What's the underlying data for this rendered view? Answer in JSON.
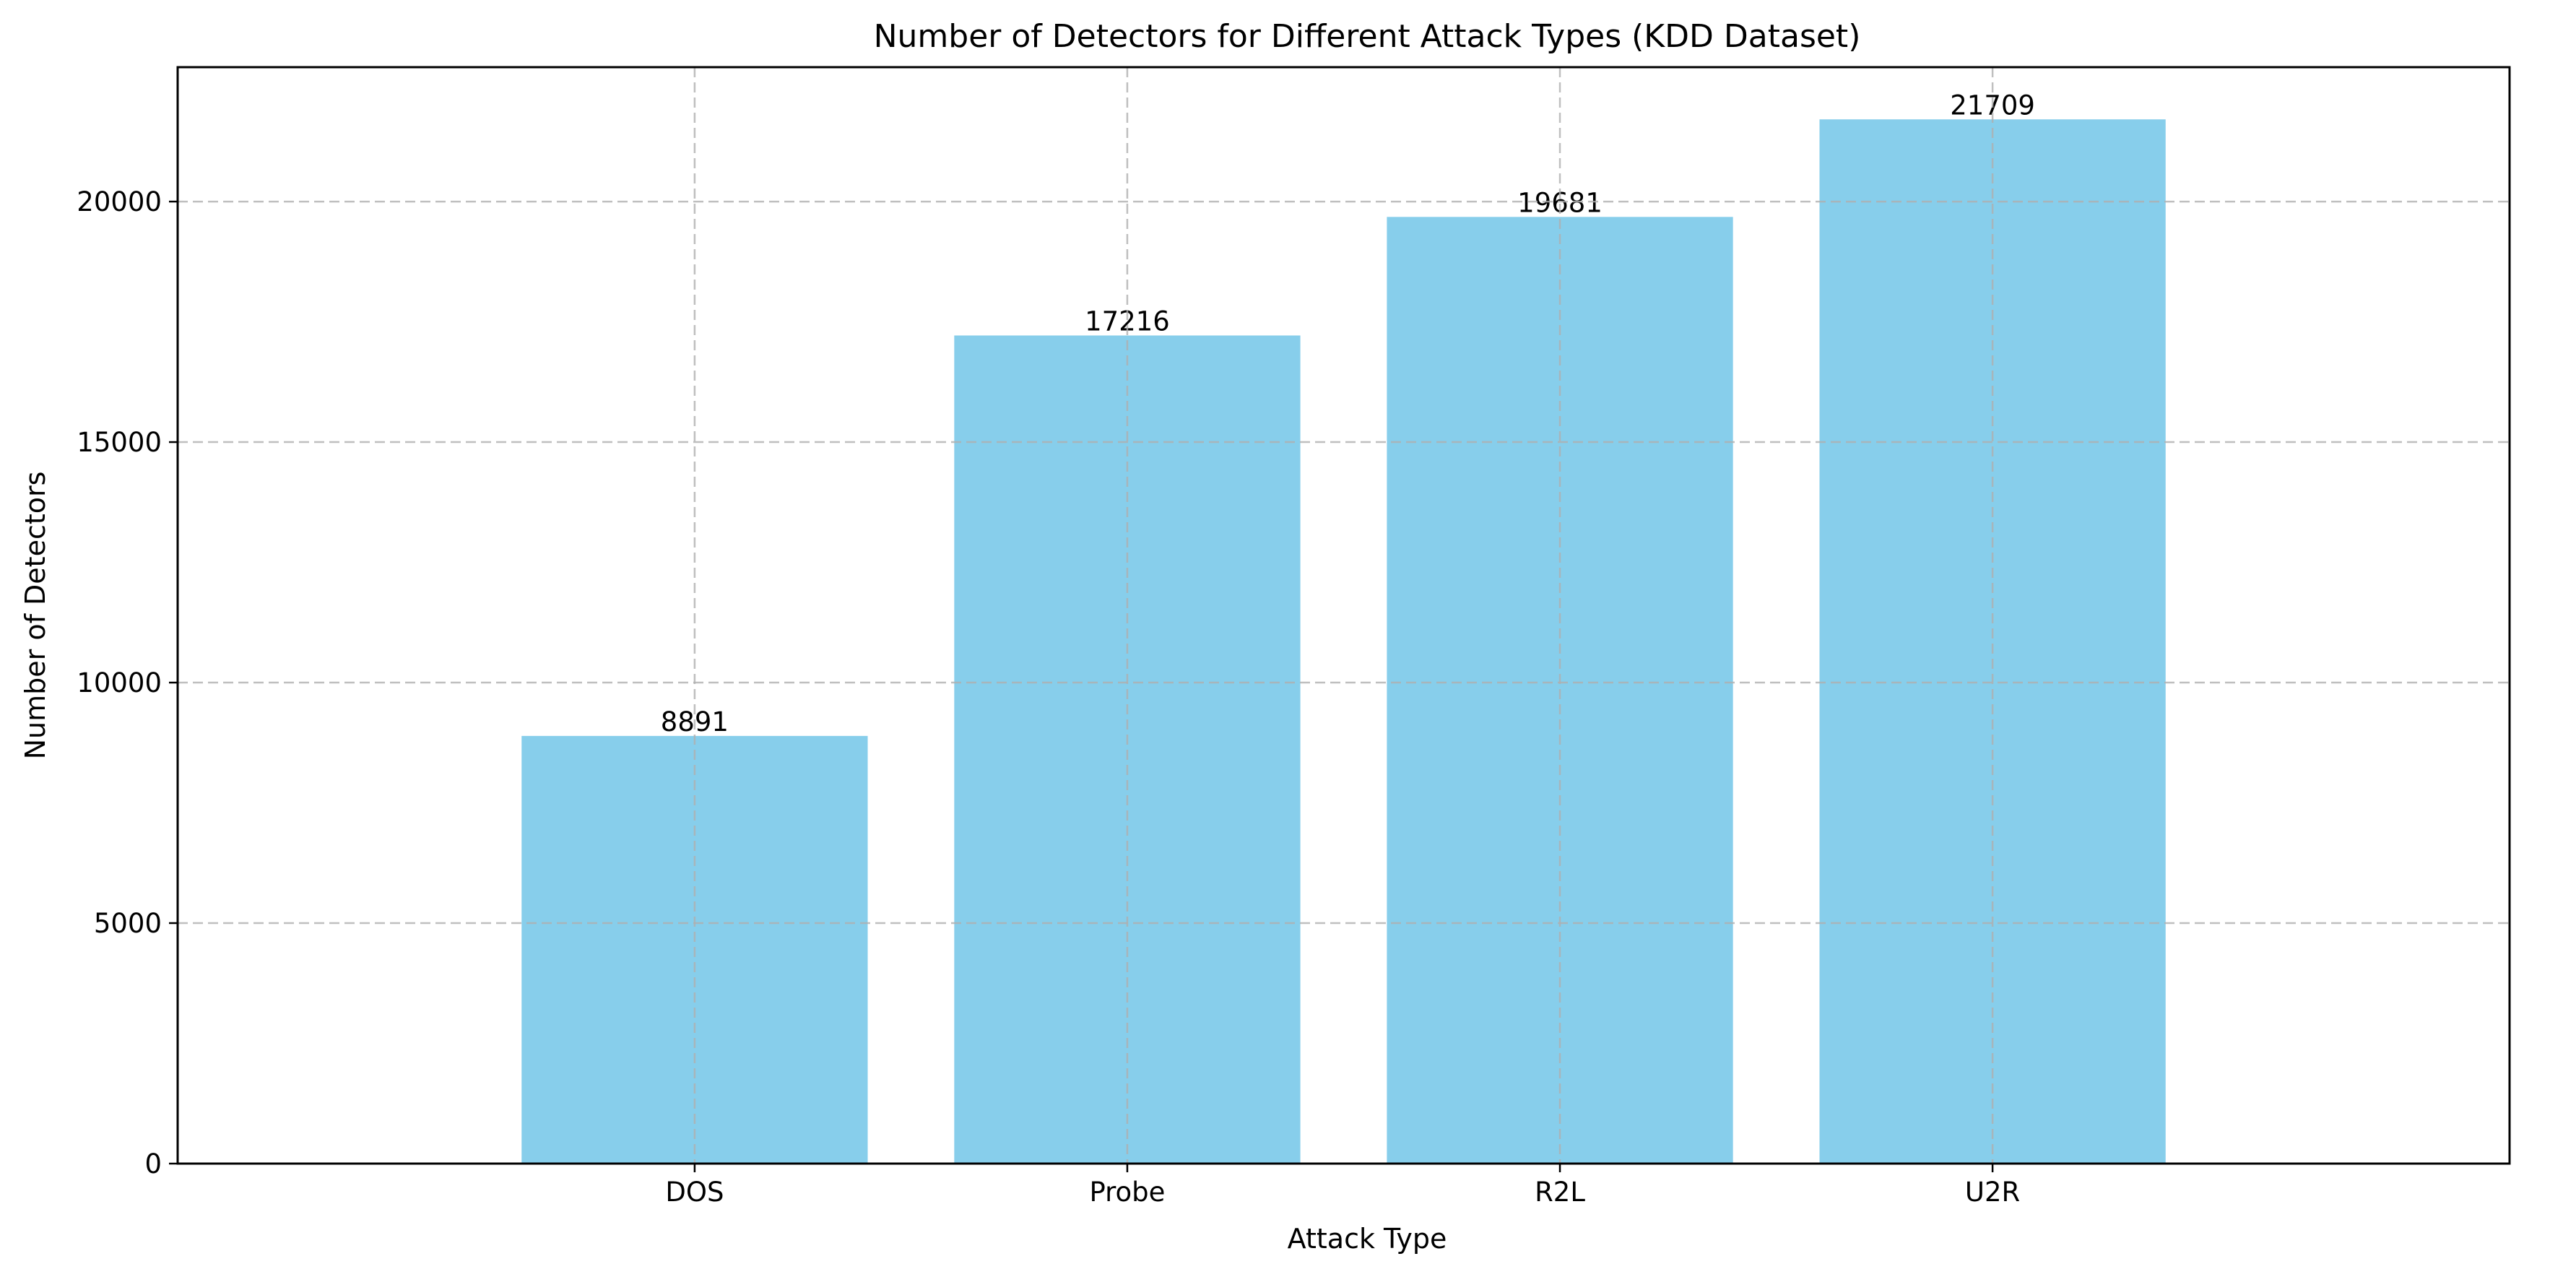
{
  "chart_data": {
    "type": "bar",
    "title": "Number of Detectors for Different Attack Types (KDD Dataset)",
    "xlabel": "Attack Type",
    "ylabel": "Number of Detectors",
    "categories": [
      "DOS",
      "Probe",
      "R2L",
      "U2R"
    ],
    "values": [
      8891,
      17216,
      19681,
      21709
    ],
    "value_labels": [
      "8891",
      "17216",
      "19681",
      "21709"
    ],
    "ylim": [
      0,
      22794
    ],
    "yticks": [
      0,
      5000,
      10000,
      15000,
      20000
    ],
    "ytick_labels": [
      "0",
      "5000",
      "10000",
      "15000",
      "20000"
    ],
    "grid": true,
    "grid_style": "dashed",
    "bar_color": "#87ceeb"
  }
}
